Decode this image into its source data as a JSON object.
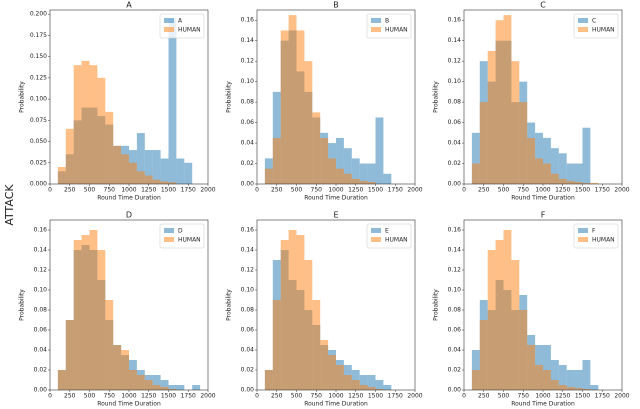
{
  "row_label": "ATTACK",
  "chart_data": [
    {
      "type": "histogram",
      "title": "A",
      "xlabel": "Round Time Duration",
      "ylabel": "Probability",
      "legend": "upper right",
      "bins": [
        100,
        200,
        300,
        400,
        500,
        600,
        700,
        800,
        900,
        1000,
        1100,
        1200,
        1300,
        1400,
        1500,
        1600,
        1700,
        1800,
        1900
      ],
      "series": [
        {
          "name": "A",
          "color": "#1f77b4",
          "values": [
            0.015,
            0.035,
            0.075,
            0.09,
            0.09,
            0.08,
            0.07,
            0.045,
            0.045,
            0.04,
            0.06,
            0.04,
            0.04,
            0.03,
            0.195,
            0.03,
            0.025,
            0
          ]
        },
        {
          "name": "HUMAN",
          "color": "#ff7f0e",
          "values": [
            0.02,
            0.065,
            0.14,
            0.145,
            0.14,
            0.125,
            0.085,
            0.045,
            0.035,
            0.025,
            0.015,
            0.01,
            0.005,
            0.003,
            0.002,
            0,
            0,
            0
          ]
        }
      ],
      "xlim": [
        0,
        2000
      ],
      "xticks": [
        0,
        250,
        500,
        750,
        1000,
        1250,
        1500,
        1750,
        2000
      ],
      "ylim": [
        0,
        0.205
      ],
      "yticks": [
        {
          "value": 0,
          "label": "0.000"
        },
        {
          "value": 0.025,
          "label": "0.025"
        },
        {
          "value": 0.05,
          "label": "0.050"
        },
        {
          "value": 0.075,
          "label": "0.075"
        },
        {
          "value": 0.1,
          "label": "0.100"
        },
        {
          "value": 0.125,
          "label": "0.125"
        },
        {
          "value": 0.15,
          "label": "0.150"
        },
        {
          "value": 0.175,
          "label": "0.175"
        },
        {
          "value": 0.2,
          "label": "0.200"
        }
      ]
    },
    {
      "type": "histogram",
      "title": "B",
      "xlabel": "Round Time Duration",
      "ylabel": "Probability",
      "legend": "upper right",
      "bins": [
        100,
        200,
        300,
        400,
        500,
        600,
        700,
        800,
        900,
        1000,
        1100,
        1200,
        1300,
        1400,
        1500,
        1600,
        1700,
        1800,
        1900
      ],
      "series": [
        {
          "name": "B",
          "color": "#1f77b4",
          "values": [
            0.025,
            0.09,
            0.14,
            0.15,
            0.11,
            0.09,
            0.065,
            0.05,
            0.04,
            0.045,
            0.035,
            0.025,
            0.02,
            0.02,
            0.065,
            0.01,
            0,
            0
          ]
        },
        {
          "name": "HUMAN",
          "color": "#ff7f0e",
          "values": [
            0.015,
            0.045,
            0.15,
            0.165,
            0.15,
            0.12,
            0.07,
            0.045,
            0.025,
            0.015,
            0.01,
            0.005,
            0.003,
            0.002,
            0,
            0,
            0,
            0
          ]
        }
      ],
      "xlim": [
        0,
        2000
      ],
      "xticks": [
        0,
        250,
        500,
        750,
        1000,
        1250,
        1500,
        1750,
        2000
      ],
      "ylim": [
        0,
        0.17
      ],
      "yticks": [
        {
          "value": 0,
          "label": "0.00"
        },
        {
          "value": 0.02,
          "label": "0.02"
        },
        {
          "value": 0.04,
          "label": "0.04"
        },
        {
          "value": 0.06,
          "label": "0.06"
        },
        {
          "value": 0.08,
          "label": "0.08"
        },
        {
          "value": 0.1,
          "label": "0.10"
        },
        {
          "value": 0.12,
          "label": "0.12"
        },
        {
          "value": 0.14,
          "label": "0.14"
        },
        {
          "value": 0.16,
          "label": "0.16"
        }
      ]
    },
    {
      "type": "histogram",
      "title": "C",
      "xlabel": "Round Time Duration",
      "ylabel": "Probability",
      "legend": "upper right",
      "bins": [
        100,
        200,
        300,
        400,
        500,
        600,
        700,
        800,
        900,
        1000,
        1100,
        1200,
        1300,
        1400,
        1500,
        1600,
        1700,
        1800,
        1900
      ],
      "series": [
        {
          "name": "C",
          "color": "#1f77b4",
          "values": [
            0.05,
            0.12,
            0.1,
            0.14,
            0.14,
            0.08,
            0.1,
            0.06,
            0.05,
            0.045,
            0.035,
            0.03,
            0.02,
            0.02,
            0.055,
            0,
            0,
            0
          ]
        },
        {
          "name": "HUMAN",
          "color": "#ff7f0e",
          "values": [
            0.02,
            0.08,
            0.13,
            0.16,
            0.165,
            0.12,
            0.08,
            0.045,
            0.025,
            0.02,
            0.01,
            0.005,
            0.003,
            0.002,
            0.001,
            0.001,
            0,
            0
          ]
        }
      ],
      "xlim": [
        0,
        2000
      ],
      "xticks": [
        0,
        250,
        500,
        750,
        1000,
        1250,
        1500,
        1750,
        2000
      ],
      "ylim": [
        0,
        0.17
      ],
      "yticks": [
        {
          "value": 0,
          "label": "0.00"
        },
        {
          "value": 0.02,
          "label": "0.02"
        },
        {
          "value": 0.04,
          "label": "0.04"
        },
        {
          "value": 0.06,
          "label": "0.06"
        },
        {
          "value": 0.08,
          "label": "0.08"
        },
        {
          "value": 0.1,
          "label": "0.10"
        },
        {
          "value": 0.12,
          "label": "0.12"
        },
        {
          "value": 0.14,
          "label": "0.14"
        },
        {
          "value": 0.16,
          "label": "0.16"
        }
      ]
    },
    {
      "type": "histogram",
      "title": "D",
      "xlabel": "Round Time Duration",
      "ylabel": "Probability",
      "legend": "upper right",
      "bins": [
        100,
        200,
        300,
        400,
        500,
        600,
        700,
        800,
        900,
        1000,
        1100,
        1200,
        1300,
        1400,
        1500,
        1600,
        1700,
        1800,
        1900
      ],
      "series": [
        {
          "name": "D",
          "color": "#1f77b4",
          "values": [
            0.02,
            0.07,
            0.14,
            0.145,
            0.14,
            0.11,
            0.07,
            0.045,
            0.035,
            0.03,
            0.02,
            0.015,
            0.015,
            0.01,
            0.005,
            0.005,
            0,
            0.005
          ]
        },
        {
          "name": "HUMAN",
          "color": "#ff7f0e",
          "values": [
            0.02,
            0.07,
            0.15,
            0.155,
            0.16,
            0.14,
            0.09,
            0.045,
            0.04,
            0.02,
            0.015,
            0.01,
            0.005,
            0.003,
            0.001,
            0,
            0,
            0
          ]
        }
      ],
      "xlim": [
        0,
        2000
      ],
      "xticks": [
        0,
        250,
        500,
        750,
        1000,
        1250,
        1500,
        1750,
        2000
      ],
      "ylim": [
        0,
        0.17
      ],
      "yticks": [
        {
          "value": 0,
          "label": "0.00"
        },
        {
          "value": 0.02,
          "label": "0.02"
        },
        {
          "value": 0.04,
          "label": "0.04"
        },
        {
          "value": 0.06,
          "label": "0.06"
        },
        {
          "value": 0.08,
          "label": "0.08"
        },
        {
          "value": 0.1,
          "label": "0.10"
        },
        {
          "value": 0.12,
          "label": "0.12"
        },
        {
          "value": 0.14,
          "label": "0.14"
        },
        {
          "value": 0.16,
          "label": "0.16"
        }
      ]
    },
    {
      "type": "histogram",
      "title": "E",
      "xlabel": "Round Time Duration",
      "ylabel": "Probability",
      "legend": "upper right",
      "bins": [
        100,
        200,
        300,
        400,
        500,
        600,
        700,
        800,
        900,
        1000,
        1100,
        1200,
        1300,
        1400,
        1500,
        1600,
        1700,
        1800,
        1900
      ],
      "series": [
        {
          "name": "E",
          "color": "#1f77b4",
          "values": [
            0.02,
            0.13,
            0.14,
            0.11,
            0.1,
            0.08,
            0.065,
            0.045,
            0.04,
            0.03,
            0.025,
            0.02,
            0.015,
            0.015,
            0.01,
            0.005,
            0,
            0
          ]
        },
        {
          "name": "HUMAN",
          "color": "#ff7f0e",
          "values": [
            0.02,
            0.09,
            0.15,
            0.16,
            0.155,
            0.13,
            0.09,
            0.05,
            0.035,
            0.025,
            0.015,
            0.01,
            0.005,
            0.003,
            0.001,
            0,
            0,
            0
          ]
        }
      ],
      "xlim": [
        0,
        2000
      ],
      "xticks": [
        0,
        250,
        500,
        750,
        1000,
        1250,
        1500,
        1750,
        2000
      ],
      "ylim": [
        0,
        0.17
      ],
      "yticks": [
        {
          "value": 0,
          "label": "0.00"
        },
        {
          "value": 0.02,
          "label": "0.02"
        },
        {
          "value": 0.04,
          "label": "0.04"
        },
        {
          "value": 0.06,
          "label": "0.06"
        },
        {
          "value": 0.08,
          "label": "0.08"
        },
        {
          "value": 0.1,
          "label": "0.10"
        },
        {
          "value": 0.12,
          "label": "0.12"
        },
        {
          "value": 0.14,
          "label": "0.14"
        },
        {
          "value": 0.16,
          "label": "0.16"
        }
      ]
    },
    {
      "type": "histogram",
      "title": "F",
      "xlabel": "Round Time Duration",
      "ylabel": "Probability",
      "legend": "upper right",
      "bins": [
        100,
        200,
        300,
        400,
        500,
        600,
        700,
        800,
        900,
        1000,
        1100,
        1200,
        1300,
        1400,
        1500,
        1600,
        1700,
        1800,
        1900
      ],
      "series": [
        {
          "name": "F",
          "color": "#1f77b4",
          "values": [
            0.04,
            0.09,
            0.08,
            0.11,
            0.1,
            0.08,
            0.095,
            0.055,
            0.045,
            0.045,
            0.03,
            0.025,
            0.02,
            0.02,
            0.03,
            0.005,
            0,
            0
          ]
        },
        {
          "name": "HUMAN",
          "color": "#ff7f0e",
          "values": [
            0.02,
            0.07,
            0.14,
            0.15,
            0.16,
            0.13,
            0.08,
            0.045,
            0.025,
            0.02,
            0.01,
            0.005,
            0.003,
            0.002,
            0.001,
            0,
            0,
            0
          ]
        }
      ],
      "xlim": [
        0,
        2000
      ],
      "xticks": [
        0,
        250,
        500,
        750,
        1000,
        1250,
        1500,
        1750,
        2000
      ],
      "ylim": [
        0,
        0.17
      ],
      "yticks": [
        {
          "value": 0,
          "label": "0.00"
        },
        {
          "value": 0.02,
          "label": "0.02"
        },
        {
          "value": 0.04,
          "label": "0.04"
        },
        {
          "value": 0.06,
          "label": "0.06"
        },
        {
          "value": 0.08,
          "label": "0.08"
        },
        {
          "value": 0.1,
          "label": "0.10"
        },
        {
          "value": 0.12,
          "label": "0.12"
        },
        {
          "value": 0.14,
          "label": "0.14"
        },
        {
          "value": 0.16,
          "label": "0.16"
        }
      ]
    }
  ]
}
